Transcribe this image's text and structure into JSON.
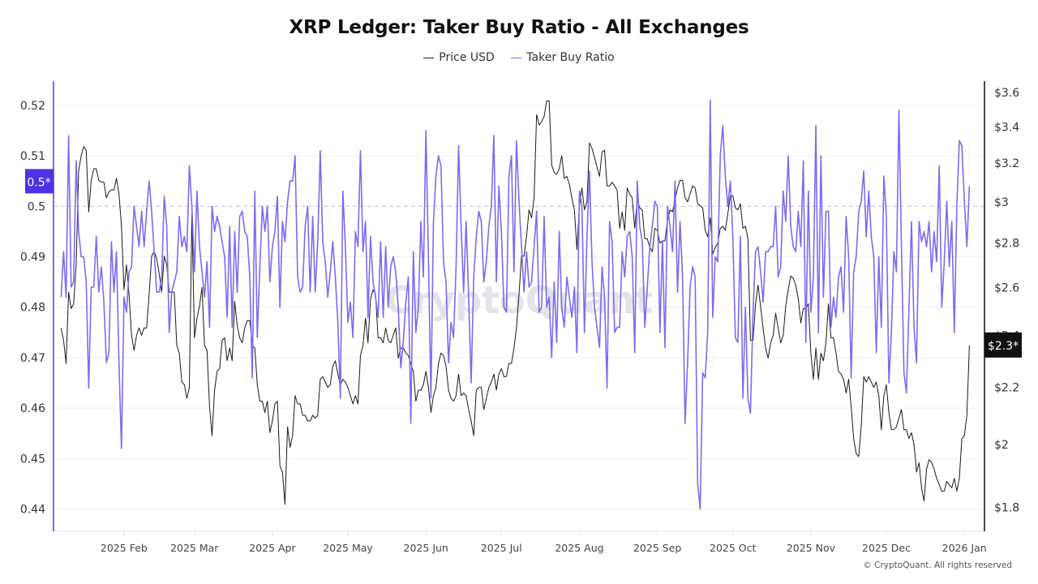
{
  "chart_data": {
    "type": "line",
    "title": "XRP Ledger: Taker Buy Ratio - All Exchanges",
    "x_first": "2025-01-07",
    "x_last": "2026-01-03",
    "x_frequency": "daily",
    "xlim": [
      "2025-01-04",
      "2026-01-09"
    ],
    "x_ticks": [
      {
        "date": "2025-02-01",
        "label": "2025 Feb"
      },
      {
        "date": "2025-03-01",
        "label": "2025 Mar"
      },
      {
        "date": "2025-04-01",
        "label": "2025 Apr"
      },
      {
        "date": "2025-05-01",
        "label": "2025 May"
      },
      {
        "date": "2025-06-01",
        "label": "2025 Jun"
      },
      {
        "date": "2025-07-01",
        "label": "2025 Jul"
      },
      {
        "date": "2025-08-01",
        "label": "2025 Aug"
      },
      {
        "date": "2025-09-01",
        "label": "2025 Sep"
      },
      {
        "date": "2025-10-01",
        "label": "2025 Oct"
      },
      {
        "date": "2025-11-01",
        "label": "2025 Nov"
      },
      {
        "date": "2025-12-01",
        "label": "2025 Dec"
      },
      {
        "date": "2026-01-01",
        "label": "2026 Jan"
      }
    ],
    "y_left": {
      "scale": "linear",
      "ylim": [
        0.4356,
        0.5248
      ],
      "ticks": [
        0.44,
        0.45,
        0.46,
        0.47,
        0.48,
        0.49,
        0.5,
        0.51,
        0.52
      ],
      "tick_labels": [
        "0.44",
        "0.45",
        "0.46",
        "0.47",
        "0.48",
        "0.49",
        "0.5",
        "0.51",
        "0.52"
      ],
      "reference_line": 0.5,
      "current_label": "0.5*"
    },
    "y_right": {
      "scale": "log",
      "ylim": [
        1.73,
        3.67
      ],
      "ticks": [
        1.8,
        2,
        2.2,
        2.4,
        2.6,
        2.8,
        3,
        3.2,
        3.4,
        3.6
      ],
      "tick_labels": [
        "$1.8",
        "$2",
        "$2.2",
        "$2.4",
        "$2.6",
        "$2.8",
        "$3",
        "$3.2",
        "$3.4",
        "$3.6"
      ],
      "current_label": "$2.3*"
    },
    "grid": true,
    "legend_position": "top-center",
    "series": [
      {
        "name": "Price USD",
        "axis": "right",
        "color": "#1a1a1a",
        "values": [
          2.43,
          2.38,
          2.29,
          2.58,
          2.51,
          2.53,
          2.7,
          3.16,
          3.24,
          3.29,
          3.27,
          2.95,
          3.11,
          3.17,
          3.17,
          3.11,
          3.1,
          3.1,
          3.02,
          3.05,
          3.06,
          3.06,
          3.12,
          3.04,
          2.88,
          2.59,
          2.7,
          2.57,
          2.4,
          2.34,
          2.4,
          2.43,
          2.4,
          2.43,
          2.43,
          2.57,
          2.74,
          2.76,
          2.73,
          2.66,
          2.58,
          2.74,
          2.7,
          2.58,
          2.58,
          2.58,
          2.36,
          2.33,
          2.22,
          2.21,
          2.16,
          2.2,
          2.94,
          2.39,
          2.47,
          2.52,
          2.6,
          2.36,
          2.34,
          2.13,
          2.03,
          2.19,
          2.26,
          2.27,
          2.38,
          2.39,
          2.3,
          2.35,
          2.3,
          2.54,
          2.44,
          2.39,
          2.37,
          2.43,
          2.46,
          2.46,
          2.36,
          2.35,
          2.21,
          2.15,
          2.15,
          2.11,
          2.15,
          2.04,
          2.08,
          2.14,
          2.15,
          1.93,
          1.91,
          1.81,
          2.06,
          1.99,
          2.03,
          2.17,
          2.14,
          2.14,
          2.1,
          2.1,
          2.08,
          2.08,
          2.1,
          2.09,
          2.1,
          2.23,
          2.24,
          2.22,
          2.2,
          2.21,
          2.28,
          2.3,
          2.25,
          2.21,
          2.23,
          2.22,
          2.2,
          2.17,
          2.14,
          2.17,
          2.14,
          2.32,
          2.36,
          2.47,
          2.37,
          2.55,
          2.59,
          2.57,
          2.39,
          2.39,
          2.37,
          2.43,
          2.38,
          2.37,
          2.4,
          2.43,
          2.31,
          2.35,
          2.35,
          2.33,
          2.32,
          2.29,
          2.26,
          2.15,
          2.19,
          2.19,
          2.21,
          2.26,
          2.2,
          2.11,
          2.17,
          2.2,
          2.29,
          2.33,
          2.32,
          2.28,
          2.19,
          2.16,
          2.15,
          2.17,
          2.25,
          2.17,
          2.18,
          2.17,
          2.12,
          2.08,
          2.03,
          2.19,
          2.2,
          2.2,
          2.12,
          2.16,
          2.2,
          2.22,
          2.25,
          2.19,
          2.25,
          2.27,
          2.24,
          2.24,
          2.29,
          2.29,
          2.35,
          2.43,
          2.57,
          2.74,
          2.74,
          2.83,
          2.96,
          2.92,
          3.02,
          3.47,
          3.41,
          3.43,
          3.46,
          3.55,
          3.55,
          3.19,
          3.15,
          3.14,
          3.17,
          3.24,
          3.12,
          3.13,
          3.09,
          3.02,
          2.96,
          2.77,
          2.98,
          3.07,
          2.96,
          3.0,
          3.31,
          3.28,
          3.23,
          3.18,
          3.13,
          3.26,
          3.27,
          3.08,
          3.08,
          3.1,
          3.08,
          3.06,
          2.87,
          2.95,
          2.86,
          3.07,
          3.04,
          3.02,
          2.87,
          3.01,
          2.97,
          2.96,
          2.82,
          2.82,
          2.78,
          2.76,
          2.87,
          2.86,
          2.8,
          2.81,
          2.81,
          2.91,
          2.96,
          2.95,
          3.01,
          3.07,
          3.11,
          3.11,
          3.02,
          3.0,
          3.04,
          3.08,
          3.07,
          2.99,
          2.98,
          2.97,
          2.86,
          2.83,
          2.92,
          2.75,
          2.78,
          2.8,
          2.87,
          2.88,
          2.86,
          2.94,
          3.03,
          3.03,
          2.97,
          2.96,
          2.99,
          2.87,
          2.88,
          2.82,
          2.38,
          2.38,
          2.53,
          2.61,
          2.52,
          2.43,
          2.35,
          2.31,
          2.37,
          2.4,
          2.49,
          2.43,
          2.37,
          2.4,
          2.52,
          2.59,
          2.65,
          2.64,
          2.61,
          2.55,
          2.45,
          2.51,
          2.51,
          2.53,
          2.33,
          2.23,
          2.35,
          2.23,
          2.33,
          2.3,
          2.37,
          2.53,
          2.39,
          2.39,
          2.33,
          2.26,
          2.25,
          2.23,
          2.18,
          2.23,
          2.13,
          2.02,
          1.97,
          1.96,
          2.06,
          2.24,
          2.22,
          2.24,
          2.22,
          2.2,
          2.22,
          2.17,
          2.05,
          2.17,
          2.21,
          2.11,
          2.05,
          2.05,
          2.06,
          2.09,
          2.12,
          2.05,
          2.05,
          2.02,
          2.04,
          2.0,
          1.91,
          1.94,
          1.86,
          1.82,
          1.92,
          1.95,
          1.94,
          1.92,
          1.89,
          1.87,
          1.85,
          1.85,
          1.88,
          1.87,
          1.86,
          1.89,
          1.85,
          1.89,
          2.02,
          2.03,
          2.1,
          2.36
        ]
      },
      {
        "name": "Taker Buy Ratio",
        "axis": "left",
        "color": "#7b6cf0",
        "values": [
          0.482,
          0.491,
          0.482,
          0.514,
          0.484,
          0.485,
          0.509,
          0.495,
          0.49,
          0.49,
          0.485,
          0.464,
          0.484,
          0.484,
          0.494,
          0.483,
          0.488,
          0.481,
          0.469,
          0.471,
          0.493,
          0.483,
          0.491,
          0.469,
          0.452,
          0.482,
          0.479,
          0.487,
          0.488,
          0.5,
          0.496,
          0.492,
          0.499,
          0.492,
          0.499,
          0.505,
          0.499,
          0.491,
          0.483,
          0.483,
          0.486,
          0.502,
          0.496,
          0.475,
          0.483,
          0.485,
          0.487,
          0.498,
          0.492,
          0.494,
          0.491,
          0.508,
          0.5,
          0.487,
          0.503,
          0.492,
          0.487,
          0.482,
          0.489,
          0.476,
          0.5,
          0.495,
          0.498,
          0.496,
          0.493,
          0.49,
          0.478,
          0.496,
          0.476,
          0.495,
          0.483,
          0.498,
          0.499,
          0.495,
          0.494,
          0.486,
          0.466,
          0.503,
          0.474,
          0.488,
          0.5,
          0.495,
          0.5,
          0.485,
          0.492,
          0.495,
          0.502,
          0.48,
          0.497,
          0.493,
          0.501,
          0.505,
          0.505,
          0.51,
          0.486,
          0.483,
          0.484,
          0.496,
          0.5,
          0.483,
          0.498,
          0.483,
          0.493,
          0.511,
          0.493,
          0.489,
          0.482,
          0.487,
          0.493,
          0.486,
          0.477,
          0.462,
          0.503,
          0.492,
          0.477,
          0.481,
          0.474,
          0.495,
          0.492,
          0.511,
          0.491,
          0.497,
          0.478,
          0.494,
          0.485,
          0.482,
          0.478,
          0.493,
          0.478,
          0.492,
          0.48,
          0.488,
          0.49,
          0.487,
          0.48,
          0.468,
          0.473,
          0.481,
          0.486,
          0.457,
          0.491,
          0.475,
          0.48,
          0.497,
          0.486,
          0.515,
          0.49,
          0.462,
          0.497,
          0.506,
          0.51,
          0.508,
          0.489,
          0.485,
          0.469,
          0.477,
          0.474,
          0.488,
          0.512,
          0.496,
          0.483,
          0.497,
          0.482,
          0.465,
          0.486,
          0.494,
          0.499,
          0.497,
          0.485,
          0.489,
          0.496,
          0.5,
          0.514,
          0.485,
          0.504,
          0.495,
          0.48,
          0.479,
          0.506,
          0.51,
          0.487,
          0.513,
          0.501,
          0.492,
          0.483,
          0.491,
          0.484,
          0.485,
          0.492,
          0.499,
          0.479,
          0.48,
          0.498,
          0.48,
          0.482,
          0.47,
          0.485,
          0.473,
          0.495,
          0.48,
          0.476,
          0.486,
          0.482,
          0.478,
          0.484,
          0.471,
          0.503,
          0.5,
          0.475,
          0.494,
          0.507,
          0.489,
          0.48,
          0.476,
          0.472,
          0.488,
          0.482,
          0.464,
          0.497,
          0.493,
          0.475,
          0.476,
          0.476,
          0.491,
          0.486,
          0.494,
          0.495,
          0.49,
          0.471,
          0.505,
          0.496,
          0.493,
          0.476,
          0.484,
          0.492,
          0.496,
          0.501,
          0.5,
          0.475,
          0.493,
          0.472,
          0.5,
          0.496,
          0.491,
          0.505,
          0.483,
          0.497,
          0.486,
          0.457,
          0.469,
          0.484,
          0.488,
          0.486,
          0.445,
          0.44,
          0.467,
          0.466,
          0.475,
          0.521,
          0.478,
          0.49,
          0.489,
          0.51,
          0.516,
          0.506,
          0.5,
          0.505,
          0.494,
          0.474,
          0.473,
          0.494,
          0.462,
          0.48,
          0.462,
          0.459,
          0.479,
          0.491,
          0.492,
          0.487,
          0.481,
          0.491,
          0.491,
          0.492,
          0.492,
          0.5,
          0.486,
          0.488,
          0.503,
          0.497,
          0.51,
          0.496,
          0.492,
          0.491,
          0.499,
          0.492,
          0.509,
          0.473,
          0.503,
          0.479,
          0.486,
          0.516,
          0.475,
          0.51,
          0.482,
          0.499,
          0.499,
          0.476,
          0.482,
          0.478,
          0.486,
          0.488,
          0.479,
          0.498,
          0.49,
          0.466,
          0.487,
          0.49,
          0.499,
          0.501,
          0.507,
          0.494,
          0.503,
          0.494,
          0.49,
          0.471,
          0.49,
          0.476,
          0.506,
          0.498,
          0.465,
          0.475,
          0.491,
          0.487,
          0.519,
          0.492,
          0.467,
          0.463,
          0.48,
          0.497,
          0.476,
          0.469,
          0.497,
          0.493,
          0.495,
          0.492,
          0.497,
          0.487,
          0.495,
          0.489,
          0.508,
          0.48,
          0.489,
          0.501,
          0.488,
          0.497,
          0.475,
          0.5,
          0.513,
          0.512,
          0.501,
          0.492,
          0.504
        ]
      }
    ]
  },
  "watermark": "CryptoQuant",
  "footer": "© CryptoQuant. All rights reserved"
}
